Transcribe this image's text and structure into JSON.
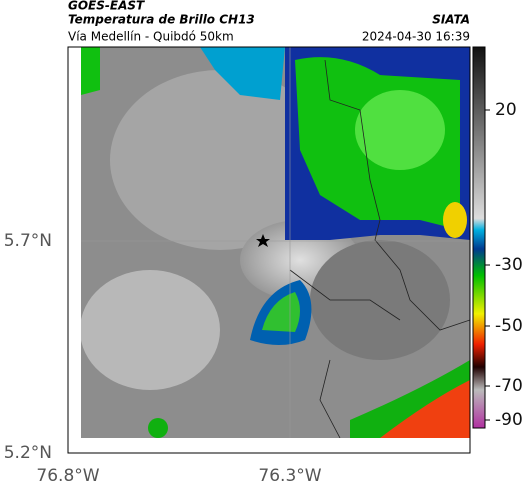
{
  "header": {
    "source": "GOES-EAST",
    "title": "Temperatura de Brillo CH13",
    "subtitle": "Vía Medellín - Quibdó 50km",
    "agency": "SIATA",
    "datetime": "2024-04-30 16:39"
  },
  "map": {
    "lat_labels": [
      "5.7°N",
      "5.2°N"
    ],
    "lon_labels": [
      "76.8°W",
      "76.3°W"
    ]
  },
  "colorbar": {
    "ticks": [
      20,
      -30,
      -50,
      -70,
      -90
    ]
  }
}
